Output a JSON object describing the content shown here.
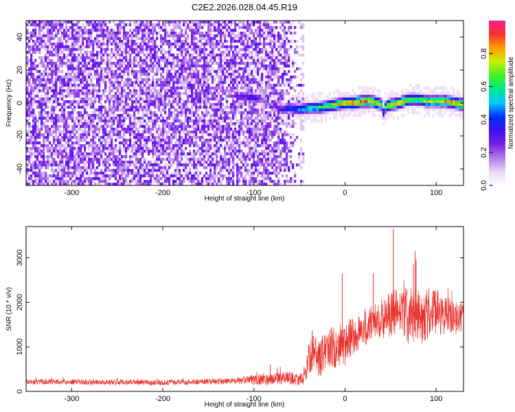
{
  "title": "C2E2.2026.028.04.45.R19",
  "chart_data": [
    {
      "type": "heatmap",
      "name": "spectrogram",
      "xlabel": "Height of straight line (km)",
      "ylabel": "Frequency (Hz)",
      "xlim": [
        -350,
        130
      ],
      "ylim": [
        -50,
        50
      ],
      "xticks": [
        -300,
        -200,
        -100,
        0,
        100
      ],
      "yticks": [
        -40,
        -20,
        0,
        20,
        40
      ],
      "colorbar": {
        "label": "Normalized spectral amplitude",
        "range": [
          0,
          1
        ],
        "ticks": [
          0.0,
          0.2,
          0.4,
          0.6,
          0.8
        ],
        "tick_labels": [
          "0.0",
          "0.2",
          "0.4",
          "0.6",
          "0.8"
        ],
        "colors": [
          "#ffffff",
          "#e8d6f5",
          "#b07ce8",
          "#7a20e8",
          "#3a10f0",
          "#0030ff",
          "#00c8ff",
          "#00e890",
          "#40f020",
          "#c8f000",
          "#ffa000",
          "#ff3030",
          "#f0208c"
        ]
      },
      "signal_track": {
        "description_x": [
          -120,
          -110,
          -100,
          -90,
          -80,
          -70,
          -60,
          -50,
          -40,
          -30,
          -20,
          -10,
          0,
          10,
          20,
          30,
          40,
          42,
          45,
          50,
          60,
          70,
          80,
          90,
          100,
          110,
          120,
          130
        ],
        "center_freq_hz": [
          3,
          4,
          3,
          2,
          -2,
          -4,
          -3,
          -4,
          -3,
          -3,
          -2,
          -1,
          0,
          0,
          1,
          1,
          -1,
          -6,
          -2,
          -1,
          0,
          2,
          2,
          1,
          1,
          1,
          0,
          -1
        ],
        "strength": [
          0.25,
          0.3,
          0.35,
          0.2,
          0.15,
          0.3,
          0.4,
          0.45,
          0.55,
          0.6,
          0.65,
          0.75,
          0.8,
          0.85,
          0.85,
          0.8,
          0.75,
          0.4,
          0.7,
          0.8,
          0.8,
          0.7,
          0.65,
          0.7,
          0.75,
          0.8,
          0.85,
          0.8
        ]
      },
      "noise_extent_km": [
        -350,
        -45
      ]
    },
    {
      "type": "line",
      "name": "snr",
      "xlabel": "Height of straight line (km)",
      "ylabel": "SNR (10 * v/v)",
      "xlim": [
        -350,
        130
      ],
      "ylim": [
        0,
        3700
      ],
      "xticks": [
        -300,
        -200,
        -100,
        0,
        100
      ],
      "yticks": [
        0,
        1000,
        2000,
        3000
      ],
      "color": "#e8302a",
      "envelope": {
        "x": [
          -350,
          -300,
          -200,
          -120,
          -100,
          -80,
          -60,
          -50,
          -45,
          -40,
          -35,
          -30,
          -20,
          -10,
          0,
          10,
          20,
          30,
          40,
          50,
          60,
          70,
          80,
          90,
          100,
          110,
          120,
          130
        ],
        "mean": [
          220,
          210,
          200,
          230,
          260,
          280,
          300,
          250,
          350,
          700,
          900,
          700,
          950,
          1000,
          1050,
          1250,
          1400,
          1550,
          1650,
          1700,
          1800,
          1700,
          1650,
          1750,
          1800,
          1700,
          1650,
          1650
        ],
        "spread": [
          60,
          60,
          60,
          70,
          120,
          130,
          150,
          120,
          200,
          350,
          400,
          400,
          500,
          500,
          500,
          450,
          450,
          400,
          450,
          550,
          600,
          650,
          650,
          600,
          550,
          450,
          400,
          300
        ]
      },
      "peaks": [
        {
          "x": 53,
          "y": 3650
        },
        {
          "x": 77,
          "y": 3150
        },
        {
          "x": 75,
          "y": 2850
        },
        {
          "x": 78,
          "y": 2950
        },
        {
          "x": -3,
          "y": 2650
        },
        {
          "x": 31,
          "y": 2650
        },
        {
          "x": -82,
          "y": 600
        },
        {
          "x": -36,
          "y": 1370
        }
      ]
    }
  ]
}
